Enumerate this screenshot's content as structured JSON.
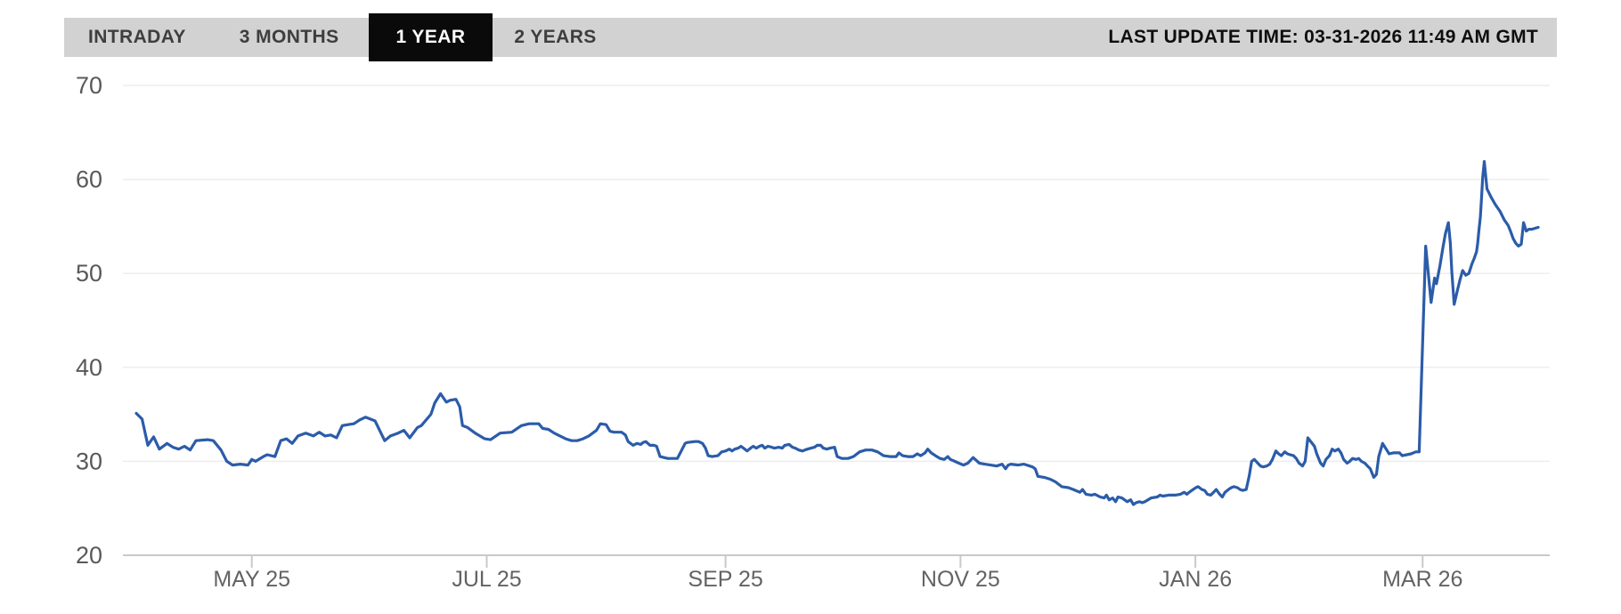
{
  "header": {
    "tabs": [
      {
        "label": "INTRADAY",
        "active": false
      },
      {
        "label": "3 MONTHS",
        "active": false
      },
      {
        "label": "1 YEAR",
        "active": true
      },
      {
        "label": "2 YEARS",
        "active": false
      }
    ],
    "last_update": "LAST UPDATE TIME: 03-31-2026 11:49 AM GMT"
  },
  "colors": {
    "bar_bg": "#d2d2d2",
    "tab_text": "#3e3e3e",
    "active_tab_bg": "#0a0a0a",
    "active_tab_text": "#ffffff",
    "update_text": "#0e0e0e",
    "line": "#2b5ca9",
    "gridline": "#ededed",
    "axis_line": "#c9c9c9",
    "y_label": "#59595b",
    "x_label": "#636363"
  },
  "chart_data": {
    "type": "line",
    "period_selected": "1 YEAR",
    "grid": "horizontal-only",
    "legend": false,
    "y_axis": {
      "min": 20,
      "max": 70,
      "ticks": [
        70,
        60,
        50,
        40,
        30,
        20
      ]
    },
    "x_axis": {
      "kind": "time",
      "days_span": 364,
      "ticks": [
        {
          "label": "MAY 25",
          "day": 30
        },
        {
          "label": "JUL 25",
          "day": 91
        },
        {
          "label": "SEP 25",
          "day": 153
        },
        {
          "label": "NOV 25",
          "day": 214
        },
        {
          "label": "JAN 26",
          "day": 275
        },
        {
          "label": "MAR 26",
          "day": 334
        }
      ]
    },
    "points": [
      [
        0,
        35.1
      ],
      [
        1.5,
        34.5
      ],
      [
        3,
        31.7
      ],
      [
        4.5,
        32.6
      ],
      [
        6,
        31.3
      ],
      [
        8,
        31.9
      ],
      [
        9.5,
        31.5
      ],
      [
        11,
        31.3
      ],
      [
        12.5,
        31.6
      ],
      [
        14,
        31.2
      ],
      [
        15.5,
        32.2
      ],
      [
        18.5,
        32.3
      ],
      [
        20,
        32.2
      ],
      [
        22,
        31.2
      ],
      [
        23.5,
        30
      ],
      [
        25,
        29.6
      ],
      [
        27,
        29.7
      ],
      [
        29,
        29.6
      ],
      [
        30,
        30.2
      ],
      [
        31,
        30
      ],
      [
        33,
        30.5
      ],
      [
        34,
        30.7
      ],
      [
        36,
        30.5
      ],
      [
        37.5,
        32.2
      ],
      [
        39,
        32.4
      ],
      [
        40.5,
        31.9
      ],
      [
        42,
        32.7
      ],
      [
        44,
        33
      ],
      [
        46,
        32.7
      ],
      [
        47.5,
        33.1
      ],
      [
        49,
        32.7
      ],
      [
        50.5,
        32.8
      ],
      [
        52,
        32.5
      ],
      [
        53.5,
        33.8
      ],
      [
        55,
        33.9
      ],
      [
        56.5,
        34
      ],
      [
        58,
        34.4
      ],
      [
        59.5,
        34.7
      ],
      [
        62,
        34.3
      ],
      [
        64.5,
        32.2
      ],
      [
        66,
        32.7
      ],
      [
        68,
        33
      ],
      [
        69.5,
        33.3
      ],
      [
        71,
        32.5
      ],
      [
        73,
        33.6
      ],
      [
        74,
        33.8
      ],
      [
        76.5,
        35
      ],
      [
        77.5,
        36.2
      ],
      [
        79,
        37.2
      ],
      [
        80.5,
        36.3
      ],
      [
        81.5,
        36.5
      ],
      [
        83,
        36.6
      ],
      [
        84,
        35.8
      ],
      [
        84.7,
        33.8
      ],
      [
        86,
        33.6
      ],
      [
        88,
        33
      ],
      [
        90.5,
        32.4
      ],
      [
        92,
        32.3
      ],
      [
        94.5,
        33
      ],
      [
        97.5,
        33.1
      ],
      [
        100,
        33.8
      ],
      [
        102,
        34
      ],
      [
        104.5,
        34
      ],
      [
        105.5,
        33.5
      ],
      [
        107,
        33.4
      ],
      [
        108.5,
        33
      ],
      [
        110,
        32.7
      ],
      [
        111.5,
        32.4
      ],
      [
        113,
        32.2
      ],
      [
        114.5,
        32.2
      ],
      [
        116,
        32.4
      ],
      [
        117.5,
        32.7
      ],
      [
        119.5,
        33.3
      ],
      [
        120.5,
        34
      ],
      [
        122,
        33.9
      ],
      [
        123,
        33.2
      ],
      [
        124,
        33.1
      ],
      [
        126,
        33.1
      ],
      [
        127,
        32.8
      ],
      [
        127.7,
        32.1
      ],
      [
        129,
        31.7
      ],
      [
        130,
        31.9
      ],
      [
        131,
        31.8
      ],
      [
        131.6,
        32
      ],
      [
        132.3,
        32.1
      ],
      [
        133.4,
        31.7
      ],
      [
        134.4,
        31.7
      ],
      [
        135.1,
        31.6
      ],
      [
        136,
        30.5
      ],
      [
        138,
        30.3
      ],
      [
        140.5,
        30.3
      ],
      [
        141.5,
        31.1
      ],
      [
        142.5,
        31.9
      ],
      [
        143,
        32
      ],
      [
        145,
        32.1
      ],
      [
        146,
        32.1
      ],
      [
        147,
        31.9
      ],
      [
        147.8,
        31.4
      ],
      [
        148.5,
        30.6
      ],
      [
        149.5,
        30.5
      ],
      [
        151,
        30.6
      ],
      [
        152,
        31
      ],
      [
        153,
        31.1
      ],
      [
        154,
        31.3
      ],
      [
        154.7,
        31.1
      ],
      [
        155.4,
        31.3
      ],
      [
        156.3,
        31.4
      ],
      [
        157,
        31.6
      ],
      [
        158,
        31.3
      ],
      [
        158.6,
        31.1
      ],
      [
        159.5,
        31.4
      ],
      [
        160.2,
        31.6
      ],
      [
        161,
        31.4
      ],
      [
        161.8,
        31.6
      ],
      [
        162.5,
        31.7
      ],
      [
        163.2,
        31.4
      ],
      [
        164,
        31.6
      ],
      [
        165,
        31.5
      ],
      [
        165.7,
        31.4
      ],
      [
        166.8,
        31.5
      ],
      [
        167.7,
        31.4
      ],
      [
        168.4,
        31.7
      ],
      [
        169.5,
        31.8
      ],
      [
        170.4,
        31.5
      ],
      [
        171.1,
        31.4
      ],
      [
        172,
        31.2
      ],
      [
        173,
        31.1
      ],
      [
        173.6,
        31.2
      ],
      [
        174.3,
        31.3
      ],
      [
        175.2,
        31.4
      ],
      [
        176.1,
        31.5
      ],
      [
        176.8,
        31.7
      ],
      [
        177.7,
        31.7
      ],
      [
        178.4,
        31.4
      ],
      [
        179.3,
        31.3
      ],
      [
        180.2,
        31.4
      ],
      [
        181.3,
        31.5
      ],
      [
        182,
        30.5
      ],
      [
        183.2,
        30.3
      ],
      [
        184.8,
        30.3
      ],
      [
        186.2,
        30.5
      ],
      [
        187.8,
        31
      ],
      [
        189.4,
        31.2
      ],
      [
        191,
        31.2
      ],
      [
        192.5,
        31
      ],
      [
        194,
        30.6
      ],
      [
        195.7,
        30.5
      ],
      [
        197.3,
        30.5
      ],
      [
        198,
        30.9
      ],
      [
        199,
        30.6
      ],
      [
        200.3,
        30.5
      ],
      [
        201.7,
        30.5
      ],
      [
        202.8,
        30.8
      ],
      [
        203.7,
        30.6
      ],
      [
        204.8,
        30.9
      ],
      [
        205.5,
        31.3
      ],
      [
        206.4,
        30.9
      ],
      [
        207.5,
        30.6
      ],
      [
        208.7,
        30.3
      ],
      [
        209.8,
        30.2
      ],
      [
        210.7,
        30.5
      ],
      [
        211.4,
        30.2
      ],
      [
        212.5,
        30
      ],
      [
        213.6,
        29.8
      ],
      [
        214.8,
        29.6
      ],
      [
        215.9,
        29.8
      ],
      [
        217.3,
        30.4
      ],
      [
        218.9,
        29.8
      ],
      [
        220.3,
        29.7
      ],
      [
        221.8,
        29.6
      ],
      [
        223.4,
        29.5
      ],
      [
        224.8,
        29.7
      ],
      [
        225.7,
        29.2
      ],
      [
        226.4,
        29.6
      ],
      [
        227.1,
        29.7
      ],
      [
        229,
        29.6
      ],
      [
        230.5,
        29.7
      ],
      [
        232.7,
        29.4
      ],
      [
        233.4,
        29.2
      ],
      [
        234.1,
        28.4
      ],
      [
        235.7,
        28.3
      ],
      [
        237.3,
        28.1
      ],
      [
        238.7,
        27.8
      ],
      [
        240.3,
        27.3
      ],
      [
        242,
        27.2
      ],
      [
        243.3,
        27
      ],
      [
        245,
        26.7
      ],
      [
        245.7,
        27
      ],
      [
        246.6,
        26.5
      ],
      [
        248,
        26.4
      ],
      [
        248.9,
        26.5
      ],
      [
        250.3,
        26.2
      ],
      [
        251.3,
        26.1
      ],
      [
        251.9,
        26.4
      ],
      [
        252.6,
        25.9
      ],
      [
        253.5,
        26.1
      ],
      [
        254.3,
        25.7
      ],
      [
        254.9,
        26.2
      ],
      [
        255.9,
        26.1
      ],
      [
        256.6,
        25.9
      ],
      [
        257.3,
        25.7
      ],
      [
        258.2,
        25.9
      ],
      [
        258.9,
        25.4
      ],
      [
        259.6,
        25.6
      ],
      [
        260.5,
        25.7
      ],
      [
        261.2,
        25.6
      ],
      [
        261.9,
        25.7
      ],
      [
        263.5,
        26.1
      ],
      [
        265.1,
        26.2
      ],
      [
        265.8,
        26.4
      ],
      [
        266.5,
        26.3
      ],
      [
        268.1,
        26.4
      ],
      [
        269.8,
        26.4
      ],
      [
        271.1,
        26.5
      ],
      [
        272.1,
        26.7
      ],
      [
        272.8,
        26.5
      ],
      [
        273.4,
        26.7
      ],
      [
        274.4,
        27
      ],
      [
        275.1,
        27.2
      ],
      [
        275.7,
        27.3
      ],
      [
        276.7,
        27
      ],
      [
        277.4,
        26.9
      ],
      [
        278.1,
        26.5
      ],
      [
        279,
        26.4
      ],
      [
        279.7,
        26.7
      ],
      [
        280.4,
        27
      ],
      [
        281.3,
        26.5
      ],
      [
        282,
        26.2
      ],
      [
        282.7,
        26.7
      ],
      [
        283.6,
        27
      ],
      [
        284.3,
        27.2
      ],
      [
        285,
        27.3
      ],
      [
        285.9,
        27.2
      ],
      [
        286.6,
        27
      ],
      [
        287.3,
        26.9
      ],
      [
        288.2,
        27
      ],
      [
        289,
        28.5
      ],
      [
        289.6,
        30
      ],
      [
        290.3,
        30.2
      ],
      [
        291.2,
        29.8
      ],
      [
        291.9,
        29.5
      ],
      [
        292.6,
        29.4
      ],
      [
        293.5,
        29.5
      ],
      [
        294.3,
        29.7
      ],
      [
        295,
        30.2
      ],
      [
        295.9,
        31.1
      ],
      [
        296.6,
        30.8
      ],
      [
        297.3,
        30.6
      ],
      [
        298.2,
        31
      ],
      [
        298.9,
        30.8
      ],
      [
        299.6,
        30.7
      ],
      [
        300.5,
        30.6
      ],
      [
        301.2,
        30.3
      ],
      [
        301.9,
        29.8
      ],
      [
        302.8,
        29.5
      ],
      [
        303.5,
        30
      ],
      [
        304.2,
        32.5
      ],
      [
        305.9,
        31.6
      ],
      [
        306.5,
        30.8
      ],
      [
        307.5,
        29.8
      ],
      [
        308.2,
        29.5
      ],
      [
        308.9,
        30.2
      ],
      [
        309.8,
        30.6
      ],
      [
        310.5,
        31.3
      ],
      [
        311.2,
        31.1
      ],
      [
        312.1,
        31.3
      ],
      [
        312.8,
        30.9
      ],
      [
        313.5,
        30.2
      ],
      [
        314.4,
        29.8
      ],
      [
        315.1,
        30
      ],
      [
        315.8,
        30.3
      ],
      [
        316.7,
        30.2
      ],
      [
        317.4,
        30.3
      ],
      [
        318.1,
        30
      ],
      [
        319,
        29.8
      ],
      [
        319.7,
        29.5
      ],
      [
        320.4,
        29.2
      ],
      [
        321.3,
        28.3
      ],
      [
        322,
        28.6
      ],
      [
        322.6,
        30.5
      ],
      [
        323.6,
        31.9
      ],
      [
        325.3,
        30.8
      ],
      [
        326.4,
        30.9
      ],
      [
        328,
        30.9
      ],
      [
        328.7,
        30.6
      ],
      [
        329.9,
        30.7
      ],
      [
        331,
        30.8
      ],
      [
        332.2,
        31
      ],
      [
        333.1,
        31
      ],
      [
        334.8,
        52.9
      ],
      [
        336.2,
        46.9
      ],
      [
        337.1,
        49.5
      ],
      [
        337.6,
        48.9
      ],
      [
        338.5,
        50.8
      ],
      [
        339.2,
        52.6
      ],
      [
        339.9,
        54.2
      ],
      [
        340.7,
        55.4
      ],
      [
        341.2,
        53.2
      ],
      [
        341.6,
        50.1
      ],
      [
        342.2,
        46.7
      ],
      [
        343.1,
        48.3
      ],
      [
        343.7,
        49.3
      ],
      [
        344.4,
        50.3
      ],
      [
        345.2,
        49.8
      ],
      [
        346,
        50
      ],
      [
        346.8,
        51
      ],
      [
        347.4,
        51.6
      ],
      [
        348,
        52.3
      ],
      [
        348.3,
        53.2
      ],
      [
        348.6,
        54.5
      ],
      [
        349,
        56
      ],
      [
        349.3,
        58
      ],
      [
        349.6,
        60.2
      ],
      [
        350,
        61.9
      ],
      [
        350.7,
        59
      ],
      [
        351.8,
        58.1
      ],
      [
        352.9,
        57.3
      ],
      [
        354.1,
        56.6
      ],
      [
        355.2,
        55.7
      ],
      [
        356.2,
        55.1
      ],
      [
        356.8,
        54.5
      ],
      [
        357.5,
        53.7
      ],
      [
        358.2,
        53.2
      ],
      [
        358.9,
        52.9
      ],
      [
        359.6,
        53.1
      ],
      [
        360.2,
        55.4
      ],
      [
        360.9,
        54.5
      ],
      [
        361.6,
        54.7
      ],
      [
        362.4,
        54.7
      ],
      [
        363.2,
        54.8
      ],
      [
        364,
        54.9
      ]
    ]
  }
}
